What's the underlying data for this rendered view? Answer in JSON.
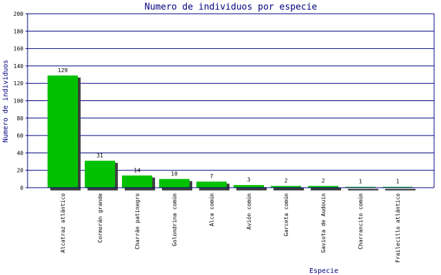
{
  "chart_data": {
    "type": "bar",
    "title": "Numero de individuos por especie",
    "x_label": "Especie",
    "y_label": "Numero de individuos",
    "categories": [
      "Alcatraz atlántico",
      "Cormorán grande",
      "Charrán patinegro",
      "Golondrina común",
      "Alca común",
      "Avión común",
      "Garceta común",
      "Gaviota de Audouin",
      "Charrancito común",
      "Frailecillo atlántico"
    ],
    "values": [
      129,
      31,
      14,
      10,
      7,
      3,
      2,
      2,
      1,
      1
    ],
    "color": "#00c000",
    "shadow_color": "#404040",
    "grid_color": "#000080",
    "ylim": [
      0,
      200
    ],
    "yticks": [
      0,
      20,
      40,
      60,
      80,
      100,
      120,
      140,
      160,
      180,
      200
    ],
    "grid": true
  }
}
